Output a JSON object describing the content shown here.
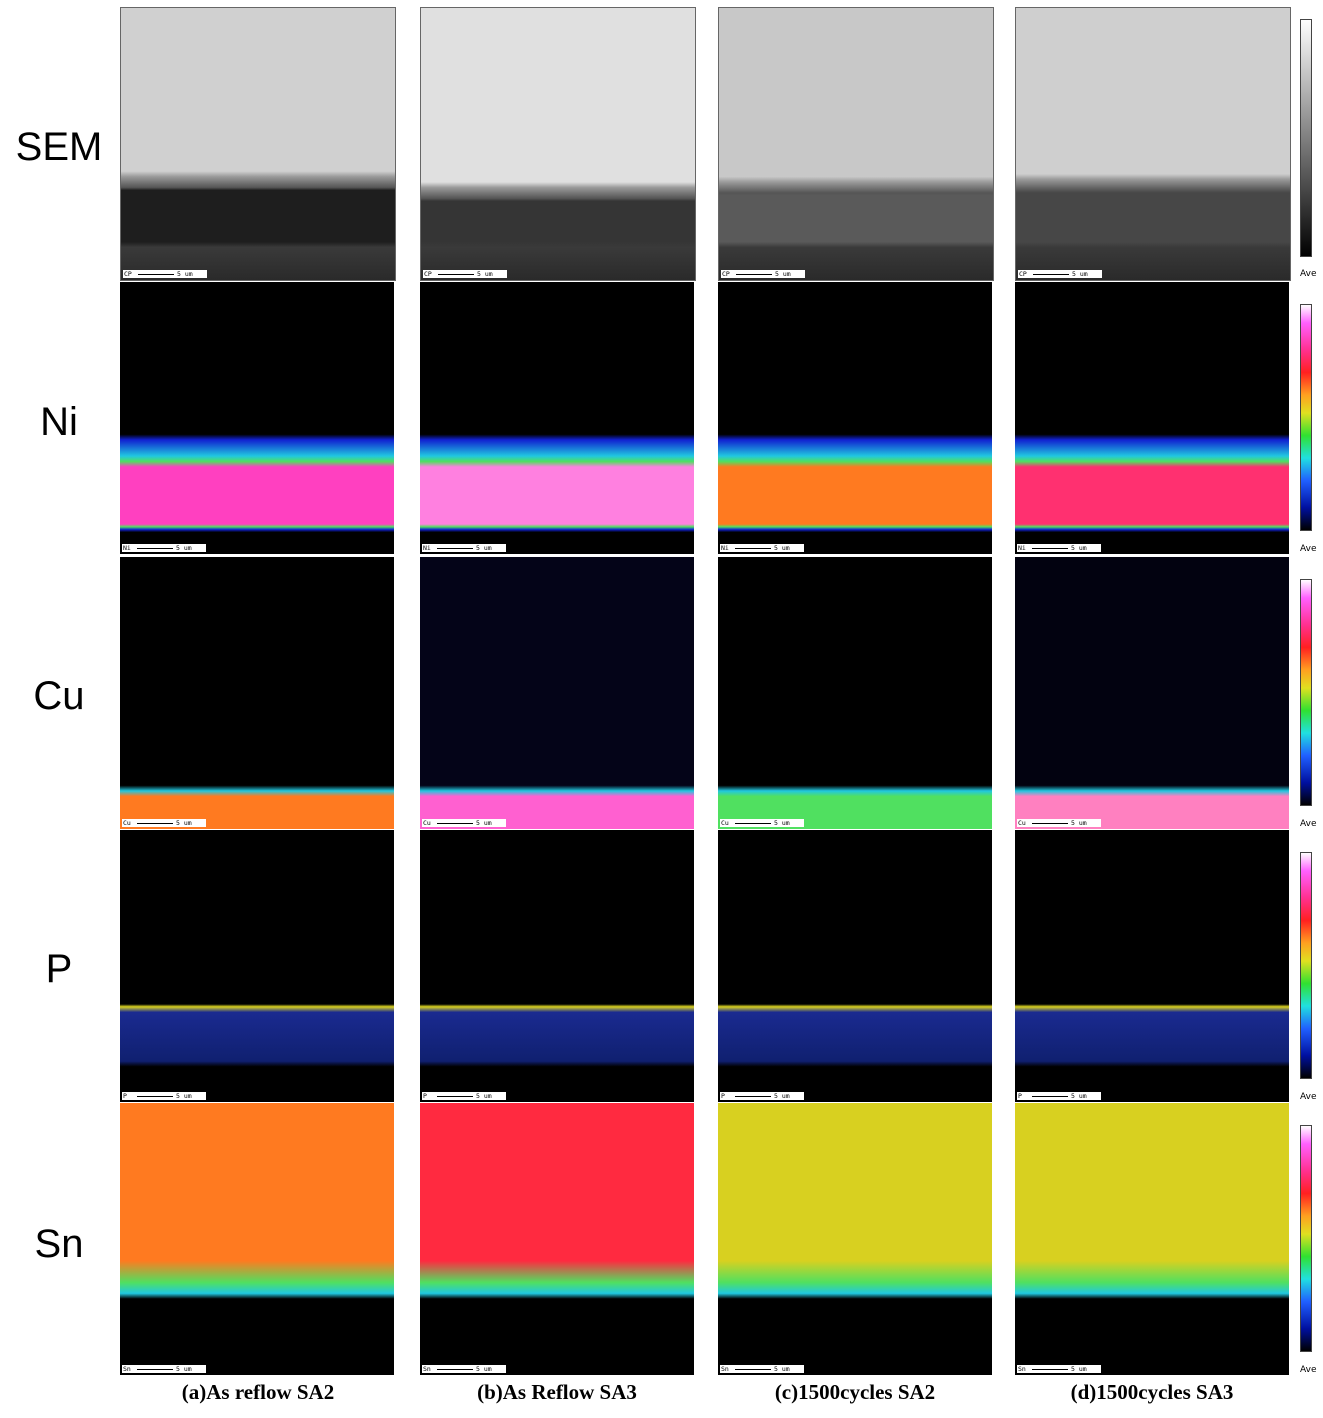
{
  "row_labels": [
    "SEM",
    "Ni",
    "Cu",
    "P",
    "Sn"
  ],
  "panel_tags": {
    "SEM": "CP",
    "Ni": "Ni",
    "Cu": "Cu",
    "P": "P",
    "Sn": "Sn"
  },
  "scale_text": "5 um",
  "colorbar_label": "Ave",
  "captions": [
    "(a)As reflow SA2",
    "(b)As Reflow SA3",
    "(c)1500cycles SA2",
    "(d)1500cycles SA3"
  ],
  "colors": {
    "sem_light": "#d8d8d8",
    "sem_dark": "#202020",
    "map_background": "#000000",
    "map_magenta": "#ff40c0",
    "map_red": "#ff2a40",
    "map_orange": "#ff7a20",
    "map_yellow": "#d8d020",
    "map_green": "#50e060",
    "map_cyan": "#20c8e0",
    "map_blue": "#1020d0"
  }
}
